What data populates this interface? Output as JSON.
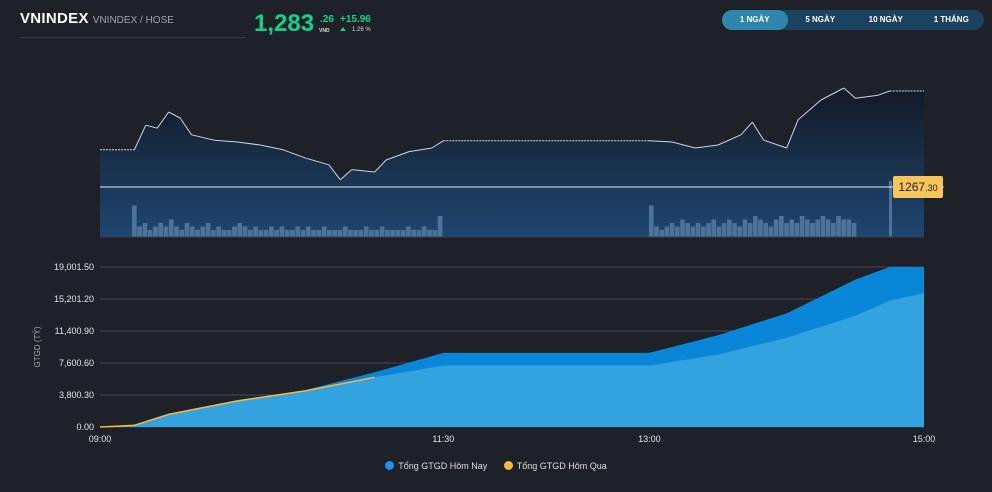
{
  "header": {
    "symbol": "VNINDEX",
    "subtitle": "VNINDEX / HOSE",
    "price_int": "1,283",
    "price_dec": ".26",
    "currency": "VND",
    "change": "+15.96",
    "change_pct": "1.26 %",
    "up_color": "#13d28a"
  },
  "tabs": [
    {
      "label": "1 NGÀY",
      "active": true
    },
    {
      "label": "5 NGÀY"
    },
    {
      "label": "10 NGÀY"
    },
    {
      "label": "1 THÁNG"
    }
  ],
  "reference": {
    "value_int": "1267",
    "value_dec": ".30",
    "value": 1267.3
  },
  "chart_data": [
    {
      "type": "line",
      "x_range": [
        "09:00",
        "15:00"
      ],
      "series": [
        {
          "values": [
            [
              "09:00",
              1273.5
            ],
            [
              "09:15",
              1273.5
            ],
            [
              "09:20",
              1277.6
            ],
            [
              "09:25",
              1277.1
            ],
            [
              "09:30",
              1279.8
            ],
            [
              "09:35",
              1278.8
            ],
            [
              "09:40",
              1276
            ],
            [
              "09:50",
              1275.1
            ],
            [
              "10:00",
              1274.8
            ],
            [
              "10:10",
              1274.3
            ],
            [
              "10:20",
              1273.5
            ],
            [
              "10:30",
              1272.1
            ],
            [
              "10:40",
              1271
            ],
            [
              "10:45",
              1268.5
            ],
            [
              "10:50",
              1270.2
            ],
            [
              "11:00",
              1269.8
            ],
            [
              "11:05",
              1271.8
            ],
            [
              "11:15",
              1273.2
            ],
            [
              "11:25",
              1273.8
            ],
            [
              "11:30",
              1275
            ],
            [
              "13:00",
              1275
            ],
            [
              "13:10",
              1274.8
            ],
            [
              "13:20",
              1273.8
            ],
            [
              "13:30",
              1274.3
            ],
            [
              "13:40",
              1276
            ],
            [
              "13:45",
              1278.1
            ],
            [
              "13:50",
              1275.1
            ],
            [
              "14:00",
              1273.8
            ],
            [
              "14:05",
              1278.5
            ],
            [
              "14:15",
              1281.8
            ],
            [
              "14:25",
              1283.8
            ],
            [
              "14:30",
              1282.1
            ],
            [
              "14:40",
              1282.6
            ],
            [
              "14:45",
              1283.3
            ],
            [
              "15:00",
              1283.3
            ]
          ]
        }
      ],
      "volume_morning": [
        9,
        3,
        4,
        2,
        3,
        4,
        3,
        5,
        3,
        2,
        4,
        3,
        2,
        3,
        4,
        2,
        3,
        2,
        2,
        3,
        4,
        3,
        2,
        3,
        2,
        2,
        3,
        2,
        3,
        2,
        2,
        3,
        2,
        3,
        2,
        2,
        3,
        2,
        2,
        2,
        3,
        2,
        2,
        2,
        3,
        2,
        2,
        3,
        2,
        2,
        2,
        2,
        3,
        2,
        2,
        3,
        2,
        2,
        6
      ],
      "volume_afternoon": [
        9,
        3,
        2,
        3,
        4,
        3,
        5,
        4,
        3,
        4,
        3,
        4,
        5,
        3,
        4,
        5,
        4,
        3,
        5,
        4,
        6,
        5,
        4,
        3,
        5,
        6,
        4,
        5,
        4,
        6,
        5,
        4,
        5,
        6,
        5,
        4,
        6,
        5,
        5,
        4
      ],
      "volume_close": 16
    },
    {
      "type": "area",
      "ylabel": "GTGD (TỶ)",
      "ylim": [
        0,
        19001.5
      ],
      "y_ticks": [
        "19,001.50",
        "15,201.20",
        "11,400.90",
        "7,600.60",
        "3,800.30",
        "0.00"
      ],
      "y_tick_values": [
        19001.5,
        15201.2,
        11400.9,
        7600.6,
        3800.3,
        0
      ],
      "x_ticks": [
        "09:00",
        "11:30",
        "13:00",
        "15:00"
      ],
      "series": [
        {
          "name": "Tổng GTGD Hôm Nay",
          "color": "#0a86d8",
          "legend_color": "#1e90f0",
          "values": [
            [
              "09:00",
              0
            ],
            [
              "09:15",
              300
            ],
            [
              "09:30",
              1500
            ],
            [
              "10:00",
              3000
            ],
            [
              "10:30",
              4400
            ],
            [
              "11:00",
              6500
            ],
            [
              "11:30",
              8800
            ],
            [
              "13:00",
              8800
            ],
            [
              "13:30",
              10900
            ],
            [
              "14:00",
              13500
            ],
            [
              "14:30",
              17500
            ],
            [
              "14:45",
              19001.5
            ],
            [
              "15:00",
              19001.5
            ]
          ]
        },
        {
          "name": "Tổng GTGD Hôm Qua",
          "color": "#32a3de",
          "legend_color": "#f5b942",
          "values": [
            [
              "09:00",
              0
            ],
            [
              "09:15",
              200
            ],
            [
              "09:30",
              1500
            ],
            [
              "10:00",
              3100
            ],
            [
              "10:30",
              4300
            ],
            [
              "11:00",
              5900
            ],
            [
              "11:30",
              7300
            ],
            [
              "13:00",
              7300
            ],
            [
              "13:30",
              8600
            ],
            [
              "14:00",
              10600
            ],
            [
              "14:30",
              13200
            ],
            [
              "14:45",
              15000
            ],
            [
              "15:00",
              15900
            ]
          ]
        }
      ]
    }
  ]
}
